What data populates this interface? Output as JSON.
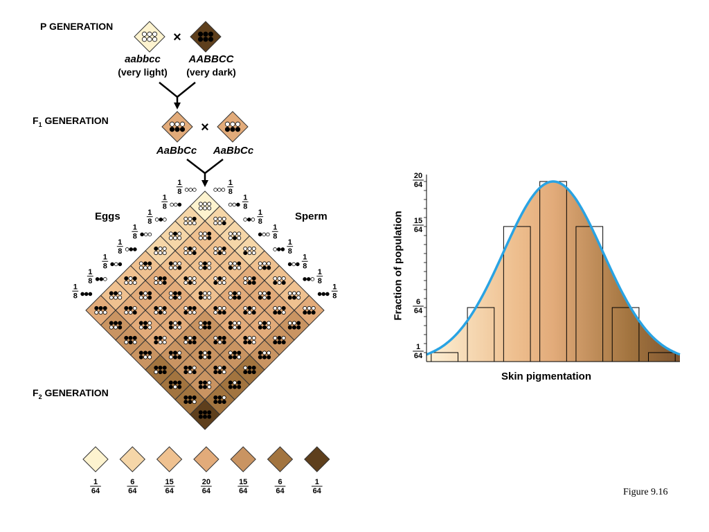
{
  "p_generation": {
    "label": "P GENERATION",
    "parent1": {
      "genotype": "aabbcc",
      "phenotype": "(very light)",
      "color": "#fdf3cf"
    },
    "parent2": {
      "genotype": "AABBCC",
      "phenotype": "(very dark)",
      "color": "#5e3f1c"
    },
    "cross_symbol": "×"
  },
  "f1_generation": {
    "label_main": "F",
    "label_sub": "1",
    "label_rest": " GENERATION",
    "parent1": {
      "genotype": "AaBbCc"
    },
    "parent2": {
      "genotype": "AaBbCc"
    },
    "color": "#e2ab7a",
    "cross_symbol": "×"
  },
  "punnett": {
    "eggs_label": "Eggs",
    "sperm_label": "Sperm",
    "gamete_fraction": {
      "num": "1",
      "den": "8"
    },
    "gametes": [
      [
        0,
        0,
        0
      ],
      [
        0,
        0,
        1
      ],
      [
        0,
        1,
        0
      ],
      [
        1,
        0,
        0
      ],
      [
        0,
        1,
        1
      ],
      [
        1,
        0,
        1
      ],
      [
        1,
        1,
        0
      ],
      [
        1,
        1,
        1
      ]
    ]
  },
  "f2_generation": {
    "label_main": "F",
    "label_sub": "2",
    "label_rest": " GENERATION"
  },
  "phenotype_classes": [
    {
      "num": "1",
      "den": "64",
      "color": "#fdf3cf"
    },
    {
      "num": "6",
      "den": "64",
      "color": "#f5d6a8"
    },
    {
      "num": "15",
      "den": "64",
      "color": "#efc190"
    },
    {
      "num": "20",
      "den": "64",
      "color": "#e2ab7a"
    },
    {
      "num": "15",
      "den": "64",
      "color": "#c99462"
    },
    {
      "num": "6",
      "den": "64",
      "color": "#a2743f"
    },
    {
      "num": "1",
      "den": "64",
      "color": "#5e3f1c"
    }
  ],
  "chart_data": {
    "type": "bar",
    "title": "",
    "xlabel": "Skin pigmentation",
    "ylabel": "Fraction of population",
    "ylim": [
      0,
      20
    ],
    "categories": [
      "0",
      "1",
      "2",
      "3",
      "4",
      "5",
      "6"
    ],
    "values": [
      1,
      6,
      15,
      20,
      15,
      6,
      1
    ],
    "ytick_labels": [
      {
        "num": "1",
        "den": "64",
        "value": 1
      },
      {
        "num": "6",
        "den": "64",
        "value": 6
      },
      {
        "num": "15",
        "den": "64",
        "value": 15
      },
      {
        "num": "20",
        "den": "64",
        "value": 20
      }
    ],
    "curve_color": "#29a3e3",
    "gradient": [
      "#fdf1d6",
      "#eebf8f",
      "#e2ab7a",
      "#a2743f",
      "#7e5530"
    ]
  },
  "figure_caption": "Figure 9.16"
}
